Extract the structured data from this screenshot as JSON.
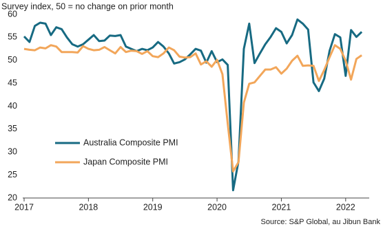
{
  "chart_data": {
    "type": "line",
    "title": "Survey index, 50 = no change on prior month",
    "source": "Source: S&P Global, au Jibun Bank",
    "categories": [
      "2017",
      null,
      null,
      null,
      null,
      null,
      null,
      null,
      null,
      null,
      null,
      null,
      "2018",
      null,
      null,
      null,
      null,
      null,
      null,
      null,
      null,
      null,
      null,
      null,
      "2019",
      null,
      null,
      null,
      null,
      null,
      null,
      null,
      null,
      null,
      null,
      null,
      "2020",
      null,
      null,
      null,
      null,
      null,
      null,
      null,
      null,
      null,
      null,
      null,
      "2021",
      null,
      null,
      null,
      null,
      null,
      null,
      null,
      null,
      null,
      null,
      null,
      "2022",
      null,
      null,
      null
    ],
    "series": [
      {
        "name": "Australia Composite PMI",
        "color": "#176a82",
        "values": [
          55.2,
          54,
          57.5,
          58.2,
          58,
          55.5,
          57.2,
          56.8,
          55,
          53.5,
          53,
          53.5,
          54.5,
          55.5,
          54.2,
          54.3,
          55.4,
          55.3,
          55.5,
          53,
          52.5,
          52,
          52.5,
          52.2,
          52.8,
          54,
          53,
          51.5,
          49.3,
          49.6,
          50.2,
          51.3,
          52.5,
          52.1,
          49.5,
          52,
          49.6,
          50.2,
          49,
          21.7,
          28,
          52.5,
          58,
          49.4,
          51.5,
          53.5,
          55.1,
          57,
          56.2,
          53.7,
          55.5,
          58.9,
          58,
          56.7,
          45.2,
          43.3,
          46,
          52.1,
          55.7,
          55,
          46.6,
          56.6,
          55.1,
          56.2
        ]
      },
      {
        "name": "Japan Composite PMI",
        "color": "#f2a65a",
        "values": [
          52.5,
          52.3,
          52.2,
          52.8,
          52.6,
          53.3,
          53,
          51.8,
          51.8,
          51.8,
          51.7,
          53.1,
          52.5,
          52.2,
          52.3,
          52.9,
          52.2,
          51.5,
          52.9,
          51.8,
          52.1,
          52,
          51.4,
          52,
          50.9,
          50.7,
          51.5,
          52.8,
          52.2,
          50.8,
          50.6,
          50.7,
          51.5,
          49.1,
          49.8,
          48.6,
          50.1,
          47,
          36.2,
          25.8,
          27.8,
          40.8,
          44.9,
          45.2,
          46.6,
          48,
          48,
          48.5,
          47.1,
          48.2,
          49.9,
          51,
          48.8,
          48.9,
          48.8,
          45.5,
          47.9,
          50.7,
          53.3,
          52.5,
          49.9,
          45.8,
          50.3,
          51.1
        ]
      }
    ],
    "ylim": [
      20,
      60
    ],
    "yticks": [
      20,
      25,
      30,
      35,
      40,
      45,
      50,
      55,
      60
    ],
    "grid": false,
    "legend": "left"
  }
}
